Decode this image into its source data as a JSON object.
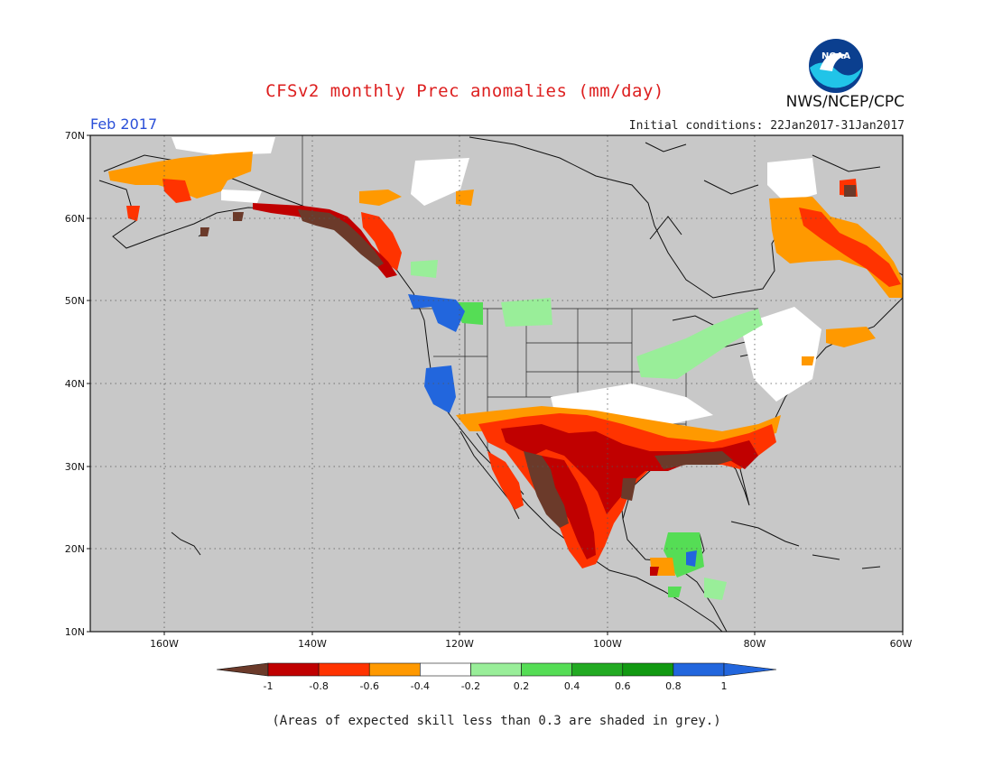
{
  "title": "CFSv2 monthly Prec anomalies (mm/day)",
  "agency": "NWS/NCEP/CPC",
  "logo_text": "NOAA",
  "period": "Feb 2017",
  "initial_conditions": "Initial conditions: 22Jan2017-31Jan2017",
  "footnote": "(Areas of expected skill less than 0.3 are shaded in grey.)",
  "map": {
    "lat_labels": [
      "70N",
      "60N",
      "50N",
      "40N",
      "30N",
      "20N",
      "10N"
    ],
    "lon_labels": [
      "160W",
      "140W",
      "120W",
      "100W",
      "80W",
      "60W"
    ],
    "land_color": "#c8c8c8",
    "grid": "dotted"
  },
  "colorbar": {
    "tick_labels": [
      "-1",
      "-0.8",
      "-0.6",
      "-0.4",
      "-0.2",
      "0.2",
      "0.4",
      "0.6",
      "0.8",
      "1"
    ],
    "colors": [
      "#6b3a2a",
      "#c00000",
      "#ff3300",
      "#ff9900",
      "#ffffff",
      "#99ee99",
      "#55dd55",
      "#22aa22",
      "#119911",
      "#2266dd"
    ]
  }
}
